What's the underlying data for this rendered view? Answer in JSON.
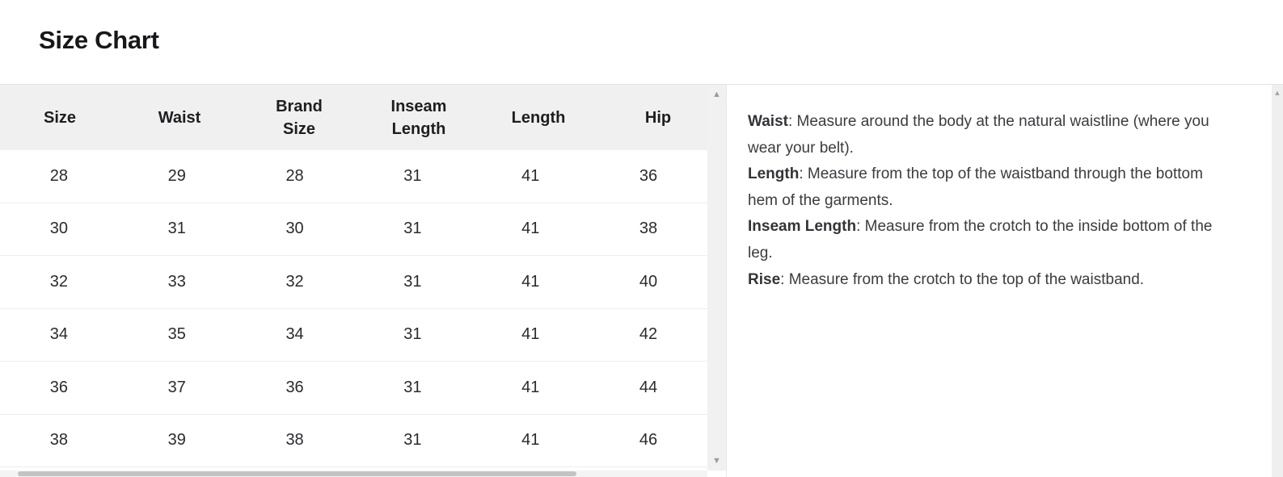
{
  "page": {
    "title": "Size Chart"
  },
  "table": {
    "columns": [
      "Size",
      "Waist",
      "Brand Size",
      "Inseam Length",
      "Length",
      "Hip"
    ],
    "rows": [
      [
        "28",
        "29",
        "28",
        "31",
        "41",
        "36"
      ],
      [
        "30",
        "31",
        "30",
        "31",
        "41",
        "38"
      ],
      [
        "32",
        "33",
        "32",
        "31",
        "41",
        "40"
      ],
      [
        "34",
        "35",
        "34",
        "31",
        "41",
        "42"
      ],
      [
        "36",
        "37",
        "36",
        "31",
        "41",
        "44"
      ],
      [
        "38",
        "39",
        "38",
        "31",
        "41",
        "46"
      ]
    ]
  },
  "notes": {
    "separator": ": ",
    "items": [
      {
        "label": "Waist",
        "text": "Measure around the body at the natural waistline (where you wear your belt)."
      },
      {
        "label": "Length",
        "text": "Measure from the top of the waistband through the bottom hem of the garments."
      },
      {
        "label": "Inseam Length",
        "text": "Measure from the crotch to the inside bottom of the leg."
      },
      {
        "label": "Rise",
        "text": "Measure from the crotch to the top of the waistband."
      }
    ]
  },
  "icons": {
    "scroll_up": "▲",
    "scroll_down": "▼"
  },
  "colors": {
    "header_bg": "#f0f0f0",
    "row_border": "#ededee",
    "scrollbar_track": "#f1f1f1",
    "scrollbar_thumb": "#c3c3c3",
    "title_text": "#18181b",
    "body_text": "#3b3b40"
  }
}
